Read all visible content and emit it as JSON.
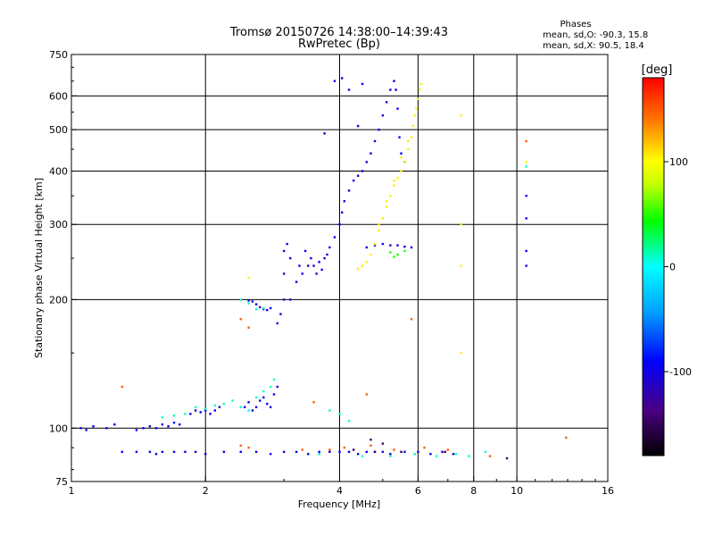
{
  "chart_data": {
    "type": "scatter",
    "title": "Tromsø 20150726 14:38:00–14:39:43",
    "subtitle": "RwPretec (Bp)",
    "xlabel": "Frequency [MHz]",
    "ylabel": "Stationary phase Virtual Height [km]",
    "x_scale": "log",
    "y_scale": "log",
    "xlim": [
      1,
      16
    ],
    "ylim": [
      75,
      750
    ],
    "x_ticks": [
      1,
      2,
      4,
      6,
      8,
      10,
      16
    ],
    "y_ticks": [
      75,
      100,
      200,
      300,
      400,
      500,
      600,
      750
    ],
    "grid_x": [
      2,
      4,
      6,
      8,
      10
    ],
    "grid_y": [
      100,
      200,
      300,
      400,
      500,
      600
    ],
    "phase_info": {
      "title": "Phases",
      "line_o": "mean, sd,O: -90.3, 15.8",
      "line_x": "mean, sd,X:  90.5, 18.4"
    },
    "colorbar": {
      "label": "[deg]",
      "range": [
        -180,
        180
      ],
      "ticks": [
        100,
        0,
        -100
      ]
    },
    "series": [
      {
        "points": [
          [
            1.05,
            100
          ],
          [
            1.08,
            99
          ],
          [
            1.12,
            101
          ],
          [
            1.2,
            100
          ],
          [
            1.25,
            102
          ],
          [
            1.4,
            99
          ],
          [
            1.45,
            100
          ],
          [
            1.5,
            101
          ],
          [
            1.55,
            100
          ],
          [
            1.6,
            102
          ],
          [
            1.65,
            101
          ],
          [
            1.7,
            103
          ],
          [
            1.75,
            102
          ],
          [
            1.85,
            108
          ],
          [
            1.9,
            110
          ],
          [
            1.95,
            109
          ],
          [
            2.0,
            110
          ],
          [
            2.05,
            108
          ],
          [
            2.1,
            110
          ],
          [
            2.15,
            112
          ],
          [
            2.45,
            112
          ],
          [
            2.5,
            115
          ],
          [
            2.55,
            110
          ],
          [
            2.6,
            112
          ],
          [
            2.65,
            116
          ],
          [
            2.7,
            118
          ],
          [
            2.75,
            114
          ],
          [
            2.8,
            112
          ],
          [
            2.85,
            120
          ],
          [
            2.9,
            125
          ],
          [
            2.9,
            176
          ],
          [
            2.95,
            185
          ],
          [
            3.0,
            200
          ],
          [
            3.0,
            230
          ],
          [
            3.0,
            260
          ],
          [
            3.05,
            270
          ],
          [
            3.1,
            250
          ],
          [
            3.1,
            200
          ],
          [
            3.2,
            220
          ],
          [
            3.25,
            240
          ],
          [
            3.3,
            230
          ],
          [
            3.35,
            260
          ],
          [
            3.4,
            240
          ],
          [
            3.45,
            250
          ],
          [
            3.5,
            240
          ],
          [
            3.55,
            230
          ],
          [
            3.6,
            245
          ],
          [
            3.65,
            235
          ],
          [
            3.7,
            250
          ],
          [
            3.75,
            255
          ],
          [
            3.8,
            265
          ],
          [
            3.9,
            280
          ],
          [
            4.0,
            300
          ],
          [
            4.05,
            320
          ],
          [
            4.1,
            340
          ],
          [
            4.2,
            360
          ],
          [
            4.3,
            380
          ],
          [
            4.4,
            390
          ],
          [
            4.5,
            400
          ],
          [
            4.6,
            420
          ],
          [
            4.7,
            440
          ],
          [
            4.8,
            470
          ],
          [
            4.9,
            500
          ],
          [
            5.0,
            540
          ],
          [
            5.1,
            580
          ],
          [
            5.2,
            620
          ],
          [
            5.3,
            650
          ],
          [
            5.35,
            620
          ],
          [
            5.4,
            560
          ],
          [
            5.45,
            480
          ],
          [
            5.5,
            440
          ],
          [
            5.6,
            420
          ],
          [
            4.6,
            265
          ],
          [
            4.8,
            268
          ],
          [
            5.0,
            270
          ],
          [
            5.2,
            268
          ],
          [
            5.4,
            268
          ],
          [
            5.6,
            266
          ],
          [
            5.8,
            265
          ],
          [
            3.9,
            650
          ],
          [
            4.05,
            660
          ],
          [
            4.2,
            620
          ],
          [
            4.5,
            640
          ],
          [
            3.7,
            490
          ],
          [
            4.4,
            510
          ],
          [
            2.8,
            191
          ],
          [
            2.75,
            189
          ],
          [
            2.7,
            190
          ],
          [
            2.65,
            192
          ],
          [
            2.6,
            195
          ],
          [
            2.55,
            198
          ],
          [
            2.5,
            199
          ],
          [
            1.3,
            88
          ],
          [
            1.4,
            88
          ],
          [
            1.5,
            88
          ],
          [
            1.55,
            87
          ],
          [
            1.6,
            88
          ],
          [
            1.7,
            88
          ],
          [
            1.8,
            88
          ],
          [
            1.9,
            88
          ],
          [
            2.0,
            87
          ],
          [
            2.2,
            88
          ],
          [
            2.4,
            88
          ],
          [
            2.6,
            88
          ],
          [
            2.8,
            87
          ],
          [
            3.0,
            88
          ],
          [
            3.2,
            88
          ],
          [
            3.4,
            87
          ],
          [
            3.6,
            88
          ],
          [
            3.8,
            88
          ],
          [
            4.0,
            88
          ],
          [
            4.2,
            88
          ],
          [
            4.4,
            87
          ],
          [
            4.6,
            88
          ],
          [
            4.8,
            88
          ],
          [
            5.0,
            88
          ],
          [
            5.2,
            87
          ],
          [
            5.6,
            88
          ],
          [
            6.0,
            88
          ],
          [
            6.4,
            87
          ],
          [
            6.8,
            88
          ],
          [
            7.2,
            87
          ],
          [
            10.5,
            350
          ],
          [
            10.5,
            310
          ],
          [
            10.5,
            260
          ],
          [
            10.5,
            240
          ]
        ],
        "phase": -100
      },
      {
        "points": [
          [
            1.9,
            112
          ],
          [
            2.0,
            111
          ],
          [
            2.1,
            113
          ],
          [
            2.2,
            114
          ],
          [
            2.3,
            116
          ],
          [
            2.4,
            112
          ],
          [
            2.5,
            110
          ],
          [
            2.6,
            118
          ],
          [
            2.7,
            122
          ],
          [
            2.8,
            125
          ],
          [
            2.85,
            130
          ],
          [
            1.6,
            106
          ],
          [
            1.7,
            107
          ],
          [
            1.8,
            108
          ],
          [
            2.4,
            200
          ],
          [
            2.5,
            196
          ],
          [
            2.6,
            190
          ],
          [
            2.7,
            191
          ],
          [
            3.8,
            110
          ],
          [
            4.0,
            108
          ],
          [
            4.2,
            104
          ],
          [
            3.6,
            87
          ],
          [
            4.5,
            86
          ],
          [
            5.2,
            86
          ],
          [
            5.9,
            87
          ],
          [
            6.6,
            86
          ],
          [
            7.3,
            87
          ],
          [
            7.8,
            86
          ],
          [
            8.5,
            88
          ],
          [
            10.5,
            410
          ]
        ],
        "phase": 10
      },
      {
        "points": [
          [
            4.4,
            236
          ],
          [
            4.5,
            240
          ],
          [
            4.6,
            245
          ],
          [
            4.7,
            255
          ],
          [
            4.8,
            270
          ],
          [
            4.9,
            290
          ],
          [
            5.0,
            310
          ],
          [
            5.1,
            330
          ],
          [
            5.2,
            350
          ],
          [
            5.3,
            370
          ],
          [
            5.4,
            385
          ],
          [
            5.5,
            400
          ],
          [
            5.6,
            420
          ],
          [
            5.7,
            450
          ],
          [
            5.8,
            480
          ],
          [
            5.85,
            510
          ],
          [
            5.9,
            540
          ],
          [
            5.95,
            560
          ],
          [
            6.0,
            590
          ],
          [
            6.05,
            620
          ],
          [
            6.1,
            640
          ],
          [
            5.3,
            380
          ],
          [
            5.5,
            430
          ],
          [
            5.7,
            470
          ],
          [
            4.9,
            300
          ],
          [
            5.1,
            340
          ],
          [
            7.5,
            540
          ],
          [
            7.5,
            300
          ],
          [
            7.5,
            240
          ],
          [
            7.5,
            150
          ],
          [
            10.5,
            420
          ],
          [
            2.5,
            225
          ]
        ],
        "phase": 105
      },
      {
        "points": [
          [
            5.2,
            258
          ],
          [
            5.4,
            255
          ],
          [
            5.6,
            260
          ],
          [
            5.3,
            252
          ]
        ],
        "phase": 50
      },
      {
        "points": [
          [
            2.4,
            91
          ],
          [
            2.5,
            90
          ],
          [
            3.3,
            89
          ],
          [
            3.8,
            89
          ],
          [
            4.1,
            90
          ],
          [
            4.7,
            91
          ],
          [
            5.3,
            89
          ],
          [
            6.2,
            90
          ],
          [
            7.0,
            89
          ],
          [
            8.7,
            86
          ],
          [
            10.5,
            470
          ],
          [
            12.9,
            95
          ],
          [
            1.3,
            125
          ],
          [
            2.4,
            180
          ],
          [
            2.5,
            172
          ],
          [
            4.6,
            120
          ],
          [
            5.8,
            180
          ],
          [
            3.5,
            115
          ]
        ],
        "phase": 150
      },
      {
        "points": [
          [
            4.3,
            89
          ],
          [
            4.8,
            88
          ],
          [
            5.5,
            88
          ],
          [
            6.9,
            88
          ],
          [
            9.5,
            85
          ],
          [
            4.7,
            94
          ],
          [
            5.0,
            92
          ]
        ],
        "phase": -150
      }
    ]
  }
}
